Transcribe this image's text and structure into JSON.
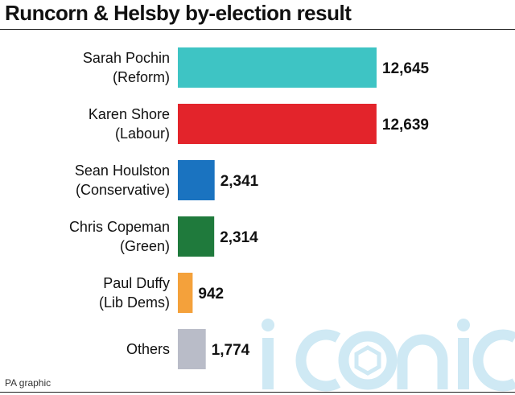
{
  "header": {
    "title": "Runcorn & Helsby by-election result"
  },
  "footer": {
    "credit": "PA graphic"
  },
  "watermark": {
    "text": "iconic",
    "color": "#cfe9f4"
  },
  "chart_data": {
    "type": "bar",
    "orientation": "horizontal",
    "title": "Runcorn & Helsby by-election result",
    "xlabel": "",
    "ylabel": "",
    "categories": [
      [
        "Sarah Pochin",
        "(Reform)"
      ],
      [
        "Karen Shore",
        "(Labour)"
      ],
      [
        "Sean Houlston",
        "(Conservative)"
      ],
      [
        "Chris Copeman",
        "(Green)"
      ],
      [
        "Paul Duffy",
        "(Lib Dems)"
      ],
      [
        "Others"
      ]
    ],
    "values": [
      12645,
      12639,
      2341,
      2314,
      942,
      1774
    ],
    "value_labels": [
      "12,645",
      "12,639",
      "2,341",
      "2,314",
      "942",
      "1,774"
    ],
    "colors": [
      "#3ec4c4",
      "#e3242b",
      "#1a73c0",
      "#1f7a3c",
      "#f4a13b",
      "#b9bcc8"
    ],
    "xlim": [
      0,
      12645
    ],
    "grid": false,
    "legend": "none"
  }
}
